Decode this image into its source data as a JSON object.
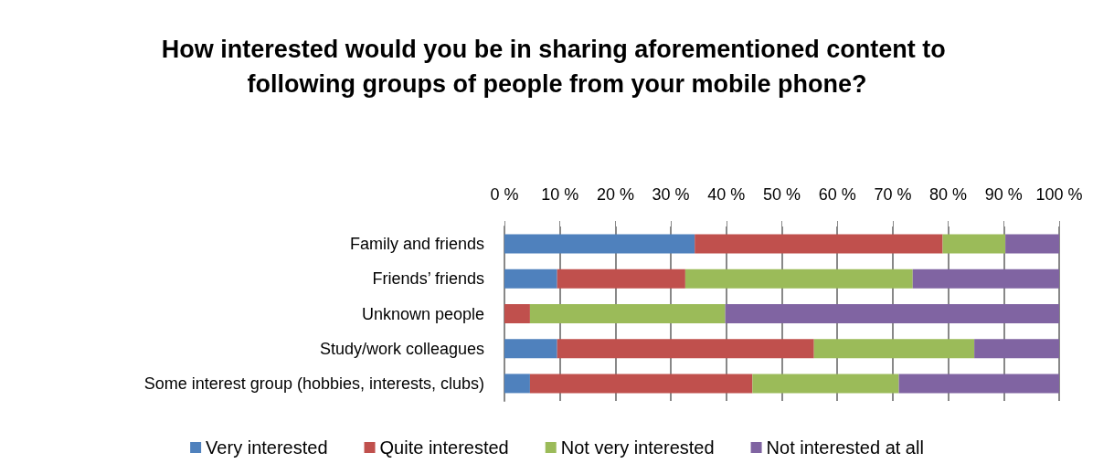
{
  "chart_data": {
    "type": "bar",
    "orientation": "horizontal",
    "stacked": true,
    "title": "How interested would you be in sharing aforementioned content to following groups of people from your mobile phone?",
    "categories": [
      "Family and friends",
      "Friends’ friends",
      "Unknown people",
      "Study/work colleagues",
      "Some interest group (hobbies, interests, clubs)"
    ],
    "series": [
      {
        "name": "Very interested",
        "color": "#4f81bd",
        "values": [
          34.3,
          9.5,
          0,
          9.5,
          4.6
        ]
      },
      {
        "name": "Quite interested",
        "color": "#c0504d",
        "values": [
          44.7,
          23.1,
          4.6,
          46.3,
          40.1
        ]
      },
      {
        "name": "Not very interested",
        "color": "#9bbb59",
        "values": [
          11.3,
          41.0,
          35.2,
          28.9,
          26.4
        ]
      },
      {
        "name": "Not interested at all",
        "color": "#8064a2",
        "values": [
          9.7,
          26.4,
          60.2,
          15.3,
          28.9
        ]
      }
    ],
    "xlim": [
      0,
      100
    ],
    "xticks": [
      {
        "value": 0,
        "label": "0 %"
      },
      {
        "value": 10,
        "label": "10 %"
      },
      {
        "value": 20,
        "label": "20 %"
      },
      {
        "value": 30,
        "label": "30 %"
      },
      {
        "value": 40,
        "label": "40 %"
      },
      {
        "value": 50,
        "label": "50 %"
      },
      {
        "value": 60,
        "label": "60 %"
      },
      {
        "value": 70,
        "label": "70 %"
      },
      {
        "value": 80,
        "label": "80 %"
      },
      {
        "value": 90,
        "label": "90 %"
      },
      {
        "value": 100,
        "label": "100 %"
      }
    ],
    "grid": "x",
    "legend": "bottom"
  }
}
